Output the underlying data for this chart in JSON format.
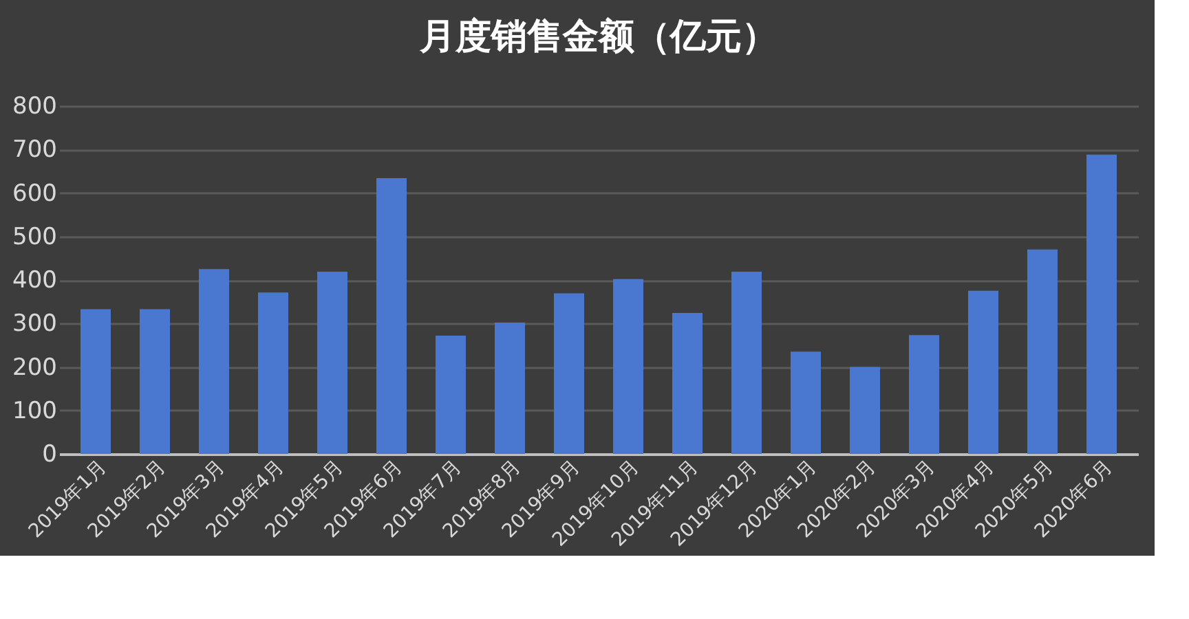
{
  "chart_data": {
    "type": "bar",
    "title": "月度销售金额（亿元）",
    "categories": [
      "2019年1月",
      "2019年2月",
      "2019年3月",
      "2019年4月",
      "2019年5月",
      "2019年6月",
      "2019年7月",
      "2019年8月",
      "2019年9月",
      "2019年10月",
      "2019年11月",
      "2019年12月",
      "2020年1月",
      "2020年2月",
      "2020年3月",
      "2020年4月",
      "2020年5月",
      "2020年6月"
    ],
    "values": [
      333,
      333,
      425,
      371,
      419,
      634,
      272,
      302,
      369,
      402,
      324,
      419,
      235,
      200,
      273,
      375,
      470,
      688
    ],
    "color": "#4a78d0",
    "ylim": [
      0,
      800
    ],
    "yticks": [
      0,
      100,
      200,
      300,
      400,
      500,
      600,
      700,
      800
    ],
    "grid": "y"
  }
}
